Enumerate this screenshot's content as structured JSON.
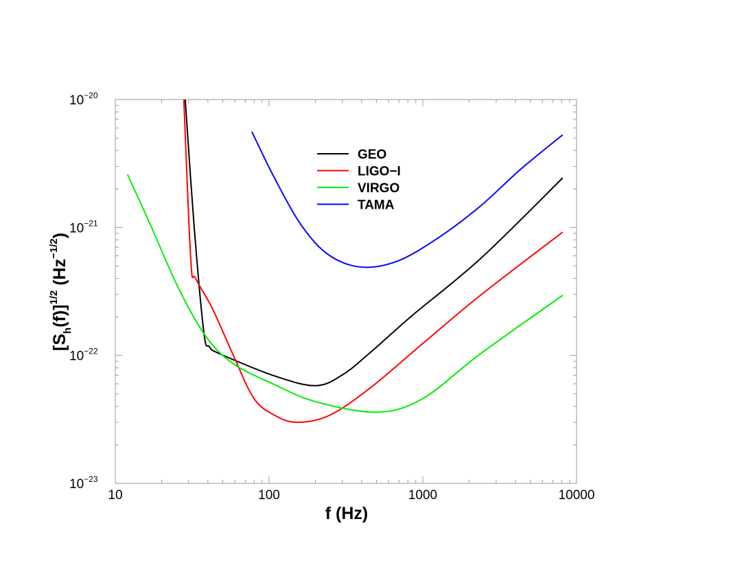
{
  "chart_data": {
    "type": "line",
    "title": "",
    "xlabel": "f (Hz)",
    "ylabel": {
      "open": "[S",
      "sub": "h",
      "mid": "(f)]",
      "sup1": "1/2",
      "unit": " (Hz",
      "sup2": "−1/2",
      "close": ")"
    },
    "xscale": "log",
    "yscale": "log",
    "xlim": [
      10,
      10000
    ],
    "ylim": [
      1e-23,
      1e-20
    ],
    "xticks": [
      {
        "v": 10,
        "label": "10"
      },
      {
        "v": 100,
        "label": "100"
      },
      {
        "v": 1000,
        "label": "1000"
      },
      {
        "v": 10000,
        "label": "10000"
      }
    ],
    "yticks": [
      {
        "v": 1e-20,
        "base": "10",
        "exp": "−20"
      },
      {
        "v": 1e-21,
        "base": "10",
        "exp": "−21"
      },
      {
        "v": 1e-22,
        "base": "10",
        "exp": "−22"
      },
      {
        "v": 1e-23,
        "base": "10",
        "exp": "−23"
      }
    ],
    "legend_position": "top-center",
    "series": [
      {
        "name": "GEO",
        "color": "#000000",
        "x": [
          28.5,
          32.6,
          37.7,
          40.9,
          47.7,
          109,
          201,
          303,
          458,
          849,
          2370,
          8130
        ],
        "y": [
          1e-20,
          1e-21,
          1.5e-22,
          1.17e-22,
          1.03e-22,
          6.9e-23,
          5.8e-23,
          7.1e-23,
          1.06e-22,
          2.04e-22,
          5.7e-22,
          2.44e-21
        ]
      },
      {
        "name": "LIGO−I",
        "color": "#ff0000",
        "x": [
          27.9,
          31,
          33.3,
          43,
          58.6,
          79.8,
          109,
          152,
          247,
          458,
          1000,
          2370,
          8130
        ],
        "y": [
          1e-20,
          5.5e-22,
          4e-22,
          2.3e-22,
          1e-22,
          4.6e-23,
          3.4e-23,
          3e-23,
          3.4e-23,
          5.6e-23,
          1.24e-22,
          2.95e-22,
          9.2e-22
        ]
      },
      {
        "name": "VIRGO",
        "color": "#00ee00",
        "x": [
          12.0,
          17.1,
          25.8,
          38.8,
          58.6,
          109,
          201,
          502,
          1000,
          2370,
          8130
        ],
        "y": [
          2.6e-21,
          1.02e-21,
          3.34e-22,
          1.41e-22,
          8.6e-23,
          5.9e-23,
          4.35e-23,
          3.6e-23,
          4.6e-23,
          1.03e-22,
          2.95e-22
        ]
      },
      {
        "name": "TAMA",
        "color": "#0000ff",
        "x": [
          77.3,
          109,
          164,
          247,
          401,
          690,
          1280,
          2370,
          4400,
          8130
        ],
        "y": [
          5.6e-21,
          2.41e-21,
          1.02e-21,
          6.05e-22,
          4.9e-22,
          5.48e-22,
          8.4e-22,
          1.47e-21,
          2.9e-21,
          5.3e-21
        ]
      }
    ]
  }
}
